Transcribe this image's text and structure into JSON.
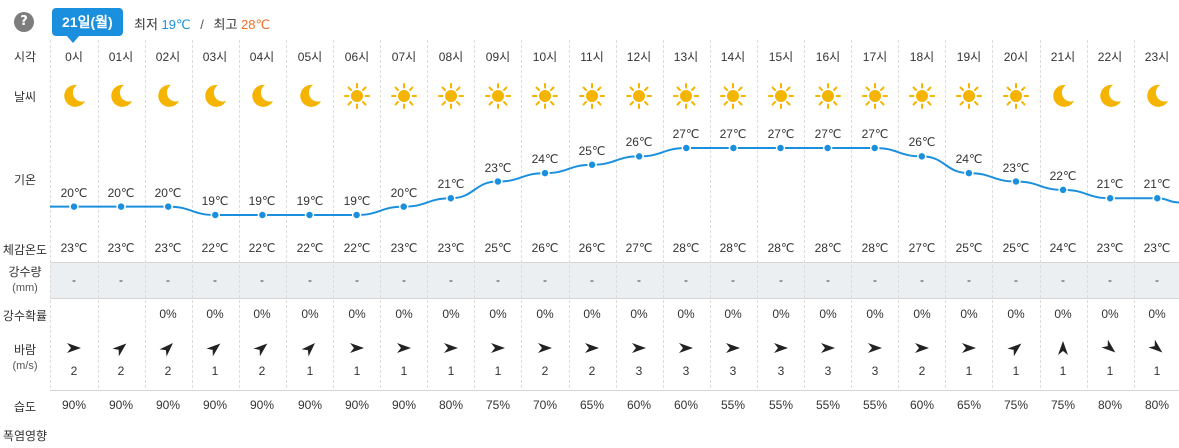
{
  "header": {
    "help_symbol": "?",
    "date_label": "21일(월)",
    "min_label": "최저",
    "min_value": "19℃",
    "separator": "/",
    "max_label": "최고",
    "max_value": "28℃"
  },
  "row_labels": {
    "time": "시각",
    "weather": "날씨",
    "temp": "기온",
    "feels": "체감온도",
    "rain_amount": "강수량",
    "rain_amount_unit": "(mm)",
    "rain_prob": "강수확률",
    "wind": "바람",
    "wind_unit": "(m/s)",
    "humidity": "습도",
    "heat": "폭염영향"
  },
  "colors": {
    "accent": "#1a8fdd",
    "min_temp": "#1a8fdd",
    "max_temp": "#ef6d2a",
    "icon_sun_moon": "#f5b400",
    "temp_line": "#1a8fdd"
  },
  "hours": [
    {
      "time": "0시",
      "icon": "moon-icon",
      "temp": "20℃",
      "feels": "23℃",
      "rain": "-",
      "prob": "",
      "wind_dir": 0,
      "wind": "2",
      "humidity": "90%"
    },
    {
      "time": "01시",
      "icon": "moon-icon",
      "temp": "20℃",
      "feels": "23℃",
      "rain": "-",
      "prob": "",
      "wind_dir": -40,
      "wind": "2",
      "humidity": "90%"
    },
    {
      "time": "02시",
      "icon": "moon-icon",
      "temp": "20℃",
      "feels": "23℃",
      "rain": "-",
      "prob": "0%",
      "wind_dir": -45,
      "wind": "2",
      "humidity": "90%"
    },
    {
      "time": "03시",
      "icon": "moon-icon",
      "temp": "19℃",
      "feels": "22℃",
      "rain": "-",
      "prob": "0%",
      "wind_dir": -40,
      "wind": "1",
      "humidity": "90%"
    },
    {
      "time": "04시",
      "icon": "moon-icon",
      "temp": "19℃",
      "feels": "22℃",
      "rain": "-",
      "prob": "0%",
      "wind_dir": -40,
      "wind": "2",
      "humidity": "90%"
    },
    {
      "time": "05시",
      "icon": "moon-icon",
      "temp": "19℃",
      "feels": "22℃",
      "rain": "-",
      "prob": "0%",
      "wind_dir": -45,
      "wind": "1",
      "humidity": "90%"
    },
    {
      "time": "06시",
      "icon": "sun-icon",
      "temp": "19℃",
      "feels": "22℃",
      "rain": "-",
      "prob": "0%",
      "wind_dir": 0,
      "wind": "1",
      "humidity": "90%"
    },
    {
      "time": "07시",
      "icon": "sun-icon",
      "temp": "20℃",
      "feels": "23℃",
      "rain": "-",
      "prob": "0%",
      "wind_dir": 0,
      "wind": "1",
      "humidity": "90%"
    },
    {
      "time": "08시",
      "icon": "sun-icon",
      "temp": "21℃",
      "feels": "23℃",
      "rain": "-",
      "prob": "0%",
      "wind_dir": 0,
      "wind": "1",
      "humidity": "80%"
    },
    {
      "time": "09시",
      "icon": "sun-icon",
      "temp": "23℃",
      "feels": "25℃",
      "rain": "-",
      "prob": "0%",
      "wind_dir": 0,
      "wind": "1",
      "humidity": "75%"
    },
    {
      "time": "10시",
      "icon": "sun-icon",
      "temp": "24℃",
      "feels": "26℃",
      "rain": "-",
      "prob": "0%",
      "wind_dir": 0,
      "wind": "2",
      "humidity": "70%"
    },
    {
      "time": "11시",
      "icon": "sun-icon",
      "temp": "25℃",
      "feels": "26℃",
      "rain": "-",
      "prob": "0%",
      "wind_dir": 0,
      "wind": "2",
      "humidity": "65%"
    },
    {
      "time": "12시",
      "icon": "sun-icon",
      "temp": "26℃",
      "feels": "27℃",
      "rain": "-",
      "prob": "0%",
      "wind_dir": 0,
      "wind": "3",
      "humidity": "60%"
    },
    {
      "time": "13시",
      "icon": "sun-icon",
      "temp": "27℃",
      "feels": "28℃",
      "rain": "-",
      "prob": "0%",
      "wind_dir": 0,
      "wind": "3",
      "humidity": "60%"
    },
    {
      "time": "14시",
      "icon": "sun-icon",
      "temp": "27℃",
      "feels": "28℃",
      "rain": "-",
      "prob": "0%",
      "wind_dir": 0,
      "wind": "3",
      "humidity": "55%"
    },
    {
      "time": "15시",
      "icon": "sun-icon",
      "temp": "27℃",
      "feels": "28℃",
      "rain": "-",
      "prob": "0%",
      "wind_dir": 0,
      "wind": "3",
      "humidity": "55%"
    },
    {
      "time": "16시",
      "icon": "sun-icon",
      "temp": "27℃",
      "feels": "28℃",
      "rain": "-",
      "prob": "0%",
      "wind_dir": 0,
      "wind": "3",
      "humidity": "55%"
    },
    {
      "time": "17시",
      "icon": "sun-icon",
      "temp": "27℃",
      "feels": "28℃",
      "rain": "-",
      "prob": "0%",
      "wind_dir": 0,
      "wind": "3",
      "humidity": "55%"
    },
    {
      "time": "18시",
      "icon": "sun-icon",
      "temp": "26℃",
      "feels": "27℃",
      "rain": "-",
      "prob": "0%",
      "wind_dir": 0,
      "wind": "2",
      "humidity": "60%"
    },
    {
      "time": "19시",
      "icon": "sun-icon",
      "temp": "24℃",
      "feels": "25℃",
      "rain": "-",
      "prob": "0%",
      "wind_dir": 0,
      "wind": "1",
      "humidity": "65%"
    },
    {
      "time": "20시",
      "icon": "sun-icon",
      "temp": "23℃",
      "feels": "25℃",
      "rain": "-",
      "prob": "0%",
      "wind_dir": -40,
      "wind": "1",
      "humidity": "75%"
    },
    {
      "time": "21시",
      "icon": "moon-icon",
      "temp": "22℃",
      "feels": "24℃",
      "rain": "-",
      "prob": "0%",
      "wind_dir": -90,
      "wind": "1",
      "humidity": "75%"
    },
    {
      "time": "22시",
      "icon": "moon-icon",
      "temp": "21℃",
      "feels": "23℃",
      "rain": "-",
      "prob": "0%",
      "wind_dir": 40,
      "wind": "1",
      "humidity": "80%"
    },
    {
      "time": "23시",
      "icon": "moon-icon",
      "temp": "21℃",
      "feels": "23℃",
      "rain": "-",
      "prob": "0%",
      "wind_dir": 40,
      "wind": "1",
      "humidity": "80%"
    }
  ],
  "temp_extra": {
    "right_edge_temp": 20.5
  },
  "chart_data": {
    "type": "line",
    "categories": [
      "0시",
      "01시",
      "02시",
      "03시",
      "04시",
      "05시",
      "06시",
      "07시",
      "08시",
      "09시",
      "10시",
      "11시",
      "12시",
      "13시",
      "14시",
      "15시",
      "16시",
      "17시",
      "18시",
      "19시",
      "20시",
      "21시",
      "22시",
      "23시"
    ],
    "series": [
      {
        "values": [
          20,
          20,
          20,
          19,
          19,
          19,
          19,
          20,
          21,
          23,
          24,
          25,
          26,
          27,
          27,
          27,
          27,
          27,
          26,
          24,
          23,
          22,
          21,
          21
        ]
      }
    ],
    "ylim": [
      19,
      27
    ],
    "grid": true
  }
}
